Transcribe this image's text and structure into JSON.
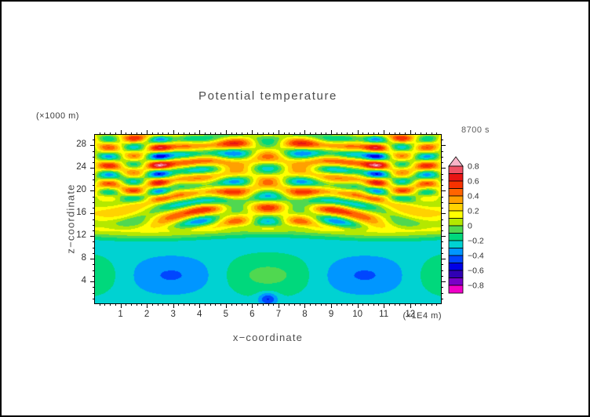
{
  "title": "Potential temperature",
  "time_label": "8700 s",
  "axes": {
    "x": {
      "label": "x−coordinate",
      "unit_label": "(×1E4 m)",
      "range": [
        0,
        13.2
      ],
      "major_ticks": [
        1,
        2,
        3,
        4,
        5,
        6,
        7,
        8,
        9,
        10,
        11,
        12
      ],
      "minor_step": 0.2
    },
    "z": {
      "label": "z−coordinate",
      "unit_label": "(×1000 m)",
      "range": [
        0,
        30
      ],
      "major_ticks": [
        4,
        8,
        12,
        16,
        20,
        24,
        28
      ],
      "minor_step": 1
    }
  },
  "colorbar": {
    "labels": [
      "0.8",
      "0.6",
      "0.4",
      "0.2",
      "0",
      "−0.2",
      "−0.4",
      "−0.6",
      "−0.8"
    ]
  },
  "chart_data": {
    "type": "heatmap",
    "title": "Potential temperature",
    "xlabel": "x−coordinate (×1E4 m)",
    "ylabel": "z−coordinate (×1000 m)",
    "time": "8700 s",
    "x_range": [
      0,
      13.2
    ],
    "z_range": [
      0,
      30
    ],
    "levels": [
      -0.8,
      -0.7,
      -0.6,
      -0.5,
      -0.4,
      -0.3,
      -0.2,
      -0.1,
      0,
      0.1,
      0.2,
      0.3,
      0.4,
      0.5,
      0.6,
      0.7,
      0.8
    ],
    "band_colors": [
      "#f000c8",
      "#7800c8",
      "#3000b4",
      "#0000e6",
      "#0046ff",
      "#0096ff",
      "#00d2d2",
      "#00d87c",
      "#50d850",
      "#b4e800",
      "#ffff00",
      "#ffd200",
      "#ffa000",
      "#ff6400",
      "#f83200",
      "#e81414",
      "#f05064",
      "#f8b4c8"
    ],
    "field_model": {
      "base_lower": -0.24,
      "base_upper": 0.12,
      "transition_z": [
        10.8,
        13.4
      ],
      "transition_wiggle": {
        "amp": 0.4,
        "kx": 0.7
      },
      "lower_patches": {
        "amp": 0.17,
        "kx": 0.85,
        "x0": 6.6,
        "z0": 5.0,
        "sigma_z": 3.4
      },
      "bottom_dip": {
        "amp": -0.3,
        "x0": 6.6,
        "sx": 0.35,
        "z0": 0.8,
        "sz": 1.1
      },
      "upper_waves": {
        "x0": 6.6,
        "z0": 12.0,
        "env_z0": 12.5,
        "env_dz": 2.0,
        "central": {
          "amp": 0.4,
          "kx": 2.4,
          "sigma_x": 2.6,
          "kz": 1.35,
          "phase": -0.55
        },
        "arcs": {
          "amp": 0.3,
          "kr": 2.2,
          "rx": 1.25,
          "rz": 1.05,
          "ring_x": 3.2,
          "ring_sigma": 2.2
        },
        "corners": {
          "amp": 0.42,
          "kx": 3.1,
          "kz": 2.0,
          "x_on": 3.0,
          "x_width": 1.5,
          "z_on": 17,
          "z_width": 3
        },
        "layers": {
          "amp": 0.09,
          "kz": 1.5
        }
      },
      "clip": 0.95
    }
  }
}
